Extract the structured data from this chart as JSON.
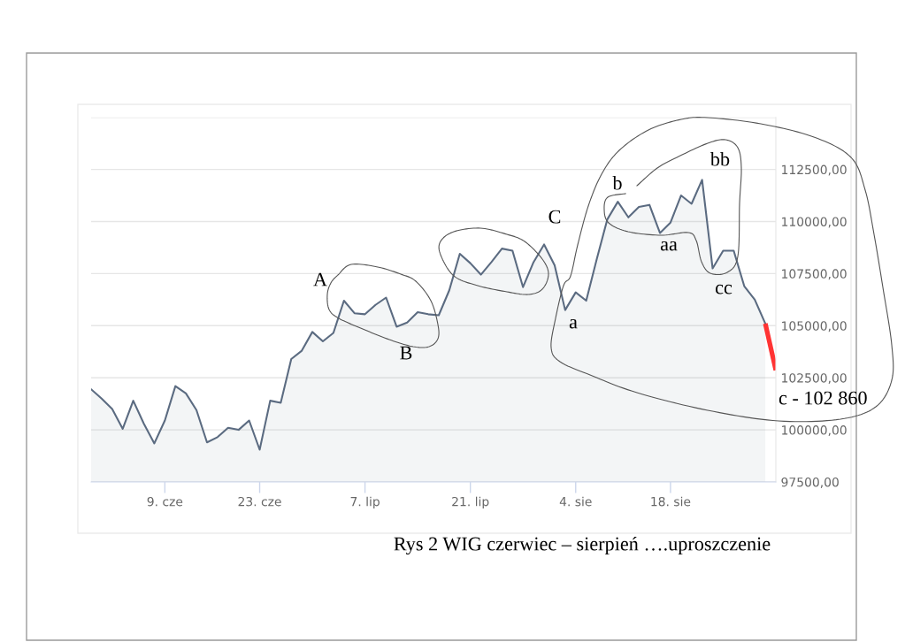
{
  "chart_data": {
    "type": "area",
    "categories": [
      null,
      null,
      null,
      null,
      null,
      null,
      null,
      "9. cze",
      null,
      null,
      null,
      null,
      null,
      null,
      null,
      null,
      "23. cze",
      null,
      null,
      null,
      null,
      null,
      null,
      null,
      null,
      null,
      "7. lip",
      null,
      null,
      null,
      null,
      null,
      null,
      null,
      null,
      null,
      "21. lip",
      null,
      null,
      null,
      null,
      null,
      null,
      null,
      null,
      null,
      "4. sie",
      null,
      null,
      null,
      null,
      null,
      null,
      null,
      null,
      "18. sie",
      null,
      null,
      null,
      null,
      null,
      null,
      null,
      null,
      null,
      null
    ],
    "series": [
      {
        "color": "#5b6b81",
        "values": [
          101950,
          101500,
          101000,
          100050,
          101400,
          100300,
          99350,
          100450,
          102100,
          101750,
          100950,
          99400,
          99650,
          100100,
          100000,
          100450,
          99050,
          101400,
          101300,
          103400,
          103800,
          104700,
          104250,
          104650,
          106200,
          105600,
          105550,
          106000,
          106350,
          104950,
          105150,
          105650,
          105550,
          105500,
          106700,
          108450,
          108000,
          107450,
          108050,
          108700,
          108600,
          106850,
          108050,
          108900,
          107900,
          105750,
          106600,
          106200,
          108200,
          110100,
          110950,
          110200,
          110700,
          110800,
          109450,
          109950,
          111250,
          110850,
          112000,
          107750,
          108600,
          108600,
          106900,
          106250,
          105100,
          null
        ]
      },
      {
        "type": "line",
        "color": "#ff3333",
        "values": [
          null,
          null,
          null,
          null,
          null,
          null,
          null,
          null,
          null,
          null,
          null,
          null,
          null,
          null,
          null,
          null,
          null,
          null,
          null,
          null,
          null,
          null,
          null,
          null,
          null,
          null,
          null,
          null,
          null,
          null,
          null,
          null,
          null,
          null,
          null,
          null,
          null,
          null,
          null,
          null,
          null,
          null,
          null,
          null,
          null,
          null,
          null,
          null,
          null,
          null,
          null,
          null,
          null,
          null,
          null,
          null,
          null,
          null,
          null,
          null,
          null,
          null,
          null,
          null,
          105100,
          102860
        ]
      }
    ],
    "ylim": [
      97500,
      115000
    ],
    "yticks": [
      {
        "value": 97500,
        "label": "97500,00"
      },
      {
        "value": 100000,
        "label": "100000,00"
      },
      {
        "value": 102500,
        "label": "102500,00"
      },
      {
        "value": 105000,
        "label": "105000,00"
      },
      {
        "value": 107500,
        "label": "107500,00"
      },
      {
        "value": 110000,
        "label": "110000,00"
      },
      {
        "value": 112500,
        "label": "112500,00"
      },
      {
        "value": 115000,
        "label": null
      }
    ],
    "grid": "y",
    "annotations": [
      "A",
      "B",
      "C",
      "a",
      "b",
      "aa",
      "bb",
      "cc",
      "c - 102 860",
      "Rys 2 WIG czerwiec – sierpień ….uproszczenie"
    ]
  }
}
